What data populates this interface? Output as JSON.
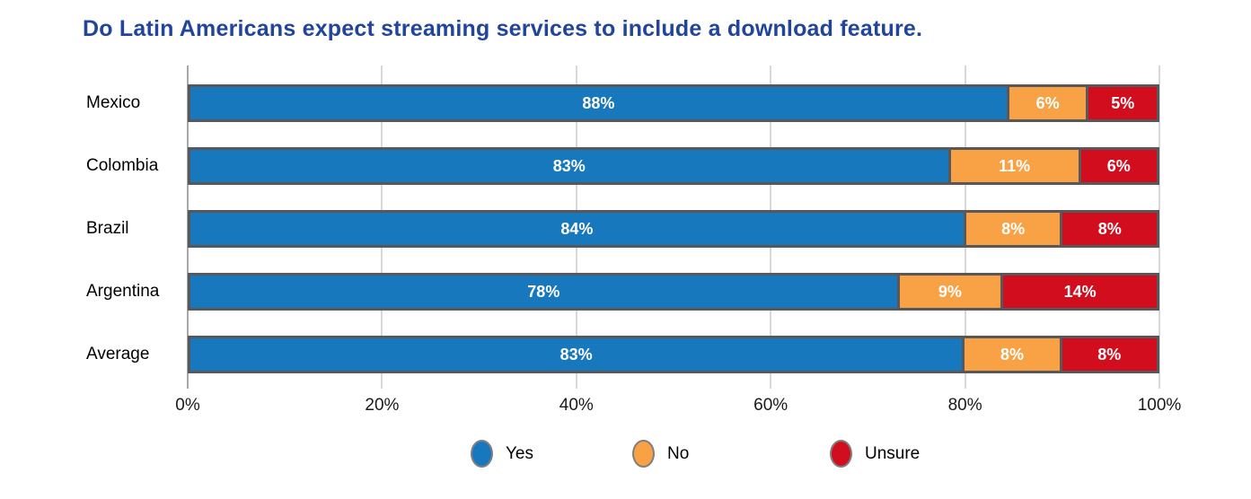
{
  "chart_data": {
    "type": "bar",
    "orientation": "horizontal-stacked",
    "title": "Do Latin Americans expect streaming services to include a download feature.",
    "categories": [
      "Mexico",
      "Colombia",
      "Brazil",
      "Argentina",
      "Average"
    ],
    "series": [
      {
        "name": "Yes",
        "color": "#1878BE",
        "values": [
          88,
          83,
          84,
          78,
          83
        ]
      },
      {
        "name": "No",
        "color": "#F9A245",
        "values": [
          6,
          11,
          8,
          9,
          8
        ]
      },
      {
        "name": "Unsure",
        "color": "#D20E1E",
        "values": [
          5,
          6,
          8,
          14,
          8
        ]
      }
    ],
    "value_suffix": "%",
    "x_ticks": [
      "0%",
      "20%",
      "40%",
      "60%",
      "80%",
      "100%"
    ],
    "xlim": [
      0,
      100
    ],
    "grid": "vertical",
    "legend_position": "bottom"
  },
  "colors": {
    "title_text": "#21459B",
    "bar_border": "#58585A",
    "gridline": "#D8D8D8",
    "axis_line": "#A8A8A8",
    "category_text": "#000000",
    "bar_value_text": "#FFFFFF",
    "legend_marker_ring": "#7F7F7F",
    "background": "#FFFFFF"
  }
}
